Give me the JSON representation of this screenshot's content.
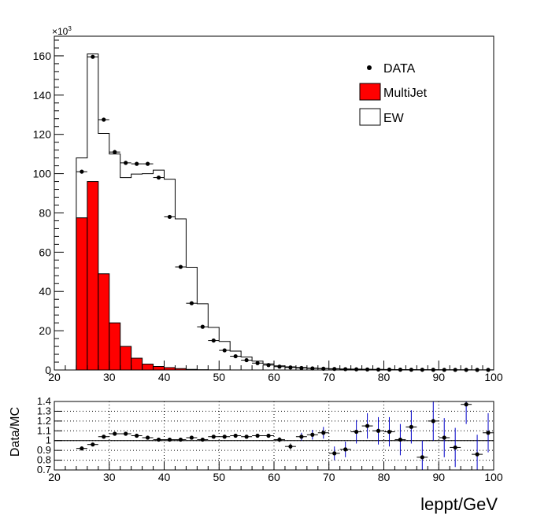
{
  "chart_data": [
    {
      "type": "histogram",
      "x_range": [
        20,
        100
      ],
      "ylim": [
        0,
        170000
      ],
      "y_multiplier_label": "×10",
      "y_multiplier_exp": "3",
      "x_ticks": [
        "20",
        "30",
        "40",
        "50",
        "60",
        "70",
        "80",
        "90",
        "100"
      ],
      "y_ticks": [
        "0",
        "20",
        "40",
        "60",
        "80",
        "100",
        "120",
        "140",
        "160"
      ],
      "legend": {
        "placement": "top-right",
        "entries": [
          "DATA",
          "MultiJet",
          "EW"
        ]
      },
      "bin_edges": [
        24,
        26,
        28,
        30,
        32,
        34,
        36,
        38,
        40,
        42,
        44,
        46,
        48,
        50,
        52,
        54,
        56,
        58,
        60,
        62,
        64,
        66,
        68,
        70,
        72,
        74,
        76,
        78,
        80,
        82,
        84,
        86,
        88,
        90,
        92,
        94,
        96,
        98,
        100
      ],
      "series": [
        {
          "name": "MultiJet",
          "color": "#ff0000",
          "style": "filled",
          "values": [
            77500,
            96000,
            49000,
            24000,
            12000,
            6000,
            3000,
            1800,
            1200,
            700,
            300,
            150,
            80,
            40,
            20,
            10,
            5,
            0,
            0,
            0,
            0,
            0,
            0,
            0,
            0,
            0,
            0,
            0,
            0,
            0,
            0,
            0,
            0,
            0,
            0,
            0,
            0,
            0
          ]
        },
        {
          "name": "EW",
          "color": "#ffffff",
          "style": "outline",
          "values": [
            30500,
            65000,
            71500,
            86000,
            86000,
            93800,
            97000,
            100000,
            96000,
            76300,
            52000,
            33600,
            21600,
            14500,
            9600,
            6600,
            4500,
            3100,
            2100,
            1600,
            1250,
            1000,
            800,
            650,
            520,
            430,
            350,
            300,
            250,
            210,
            180,
            150,
            130,
            110,
            95,
            85,
            75,
            65
          ]
        },
        {
          "name": "DATA",
          "style": "points",
          "values": [
            101000,
            159500,
            127500,
            111000,
            105500,
            105000,
            105000,
            98000,
            78000,
            52500,
            34000,
            22000,
            15000,
            10000,
            7000,
            5000,
            3500,
            2500,
            1700,
            1300,
            1000,
            800,
            650,
            520,
            420,
            340,
            280,
            230,
            190,
            160,
            135,
            115,
            100,
            85,
            72,
            62,
            54,
            47
          ]
        }
      ]
    },
    {
      "type": "ratio",
      "ylabel": "Data/MC",
      "xlabel": "leppt/GeV",
      "x_range": [
        20,
        100
      ],
      "ylim": [
        0.7,
        1.4
      ],
      "reference_line": 1.0,
      "grid": true,
      "x_ticks": [
        "20",
        "30",
        "40",
        "50",
        "60",
        "70",
        "80",
        "90",
        "100"
      ],
      "y_ticks": [
        "0.7",
        "0.8",
        "0.9",
        "1",
        "1.1",
        "1.2",
        "1.3",
        "1.4"
      ],
      "points": [
        {
          "x": 25,
          "y": 0.92,
          "err": 0.005
        },
        {
          "x": 27,
          "y": 0.96,
          "err": 0.005
        },
        {
          "x": 29,
          "y": 1.04,
          "err": 0.005
        },
        {
          "x": 31,
          "y": 1.07,
          "err": 0.005
        },
        {
          "x": 33,
          "y": 1.07,
          "err": 0.005
        },
        {
          "x": 35,
          "y": 1.05,
          "err": 0.005
        },
        {
          "x": 37,
          "y": 1.03,
          "err": 0.005
        },
        {
          "x": 39,
          "y": 1.01,
          "err": 0.005
        },
        {
          "x": 41,
          "y": 1.01,
          "err": 0.005
        },
        {
          "x": 43,
          "y": 1.01,
          "err": 0.005
        },
        {
          "x": 45,
          "y": 1.03,
          "err": 0.006
        },
        {
          "x": 47,
          "y": 1.01,
          "err": 0.007
        },
        {
          "x": 49,
          "y": 1.04,
          "err": 0.008
        },
        {
          "x": 51,
          "y": 1.04,
          "err": 0.01
        },
        {
          "x": 53,
          "y": 1.05,
          "err": 0.012
        },
        {
          "x": 55,
          "y": 1.04,
          "err": 0.014
        },
        {
          "x": 57,
          "y": 1.05,
          "err": 0.017
        },
        {
          "x": 59,
          "y": 1.05,
          "err": 0.02
        },
        {
          "x": 61,
          "y": 1.01,
          "err": 0.025
        },
        {
          "x": 63,
          "y": 0.94,
          "err": 0.03
        },
        {
          "x": 65,
          "y": 1.04,
          "err": 0.04
        },
        {
          "x": 67,
          "y": 1.06,
          "err": 0.05
        },
        {
          "x": 69,
          "y": 1.08,
          "err": 0.06
        },
        {
          "x": 71,
          "y": 0.87,
          "err": 0.07
        },
        {
          "x": 73,
          "y": 0.91,
          "err": 0.08
        },
        {
          "x": 75,
          "y": 1.09,
          "err": 0.12
        },
        {
          "x": 77,
          "y": 1.15,
          "err": 0.13
        },
        {
          "x": 79,
          "y": 1.1,
          "err": 0.14
        },
        {
          "x": 81,
          "y": 1.09,
          "err": 0.15
        },
        {
          "x": 83,
          "y": 1.01,
          "err": 0.16
        },
        {
          "x": 85,
          "y": 1.14,
          "err": 0.17
        },
        {
          "x": 87,
          "y": 0.83,
          "err": 0.17
        },
        {
          "x": 89,
          "y": 1.2,
          "err": 0.2
        },
        {
          "x": 91,
          "y": 1.03,
          "err": 0.2
        },
        {
          "x": 93,
          "y": 0.93,
          "err": 0.2
        },
        {
          "x": 95,
          "y": 1.37,
          "err": 0.2
        },
        {
          "x": 97,
          "y": 0.86,
          "err": 0.2
        },
        {
          "x": 99,
          "y": 1.08,
          "err": 0.2
        }
      ]
    }
  ]
}
